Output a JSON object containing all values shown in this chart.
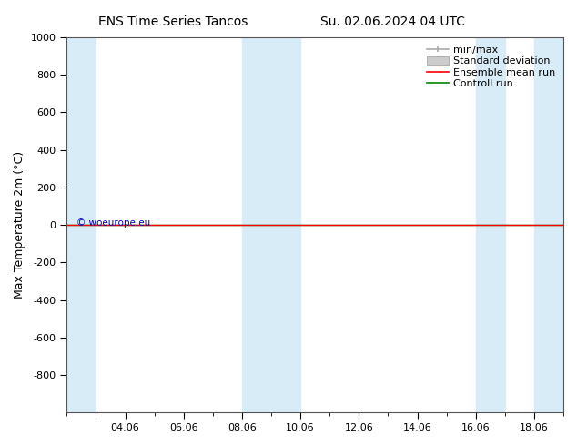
{
  "title_left": "ENS Time Series Tancos",
  "title_right": "Su. 02.06.2024 04 UTC",
  "ylabel": "Max Temperature 2m (°C)",
  "ylim_top": -1000,
  "ylim_bottom": 1000,
  "yticks": [
    -800,
    -600,
    -400,
    -200,
    0,
    200,
    400,
    600,
    800,
    1000
  ],
  "x_tick_labels": [
    "04.06",
    "06.06",
    "08.06",
    "10.06",
    "12.06",
    "14.06",
    "16.06",
    "18.06"
  ],
  "x_tick_positions": [
    2,
    4,
    6,
    8,
    10,
    12,
    14,
    16
  ],
  "xlim": [
    0,
    17
  ],
  "shaded_bands": [
    [
      0,
      1
    ],
    [
      6,
      7
    ],
    [
      7,
      8
    ],
    [
      14,
      15
    ],
    [
      16,
      17
    ]
  ],
  "shade_color": "#d8ecf8",
  "green_line_y": 0,
  "red_line_y": 0,
  "watermark": "© woeurope.eu",
  "watermark_color": "#0000bb",
  "background_color": "#ffffff",
  "legend_items": [
    "min/max",
    "Standard deviation",
    "Ensemble mean run",
    "Controll run"
  ],
  "legend_line_color": "#aaaaaa",
  "legend_std_color": "#cccccc",
  "legend_ens_color": "#ff0000",
  "legend_ctrl_color": "#008800",
  "title_fontsize": 10,
  "axis_label_fontsize": 9,
  "tick_fontsize": 8,
  "legend_fontsize": 8
}
